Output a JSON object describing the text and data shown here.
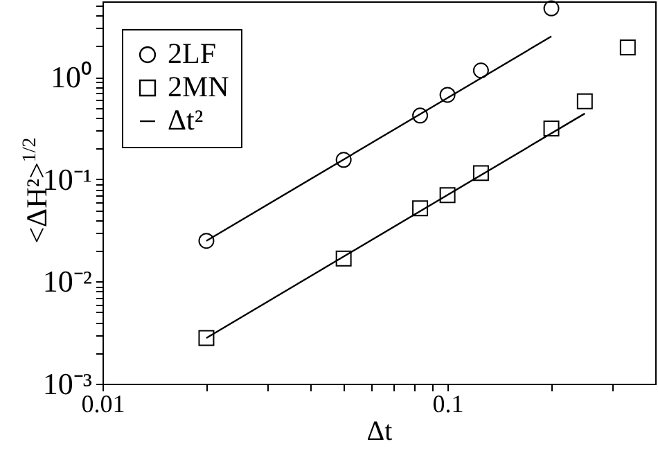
{
  "chart_data": {
    "type": "scatter",
    "xlabel": "Δt",
    "ylabel": "<ΔH²>$^{1/2}$",
    "log": "xy",
    "legend": "top left",
    "grid": false,
    "xlim": [
      0.01,
      0.4
    ],
    "ylim": [
      0.001,
      5.5
    ],
    "xticks": [
      0.01,
      {
        "value": 0.02,
        "label": null
      },
      {
        "value": 0.03,
        "label": null
      },
      {
        "value": 0.04,
        "label": null
      },
      {
        "value": 0.05,
        "label": null
      },
      {
        "value": 0.06,
        "label": null
      },
      {
        "value": 0.07,
        "label": null
      },
      {
        "value": 0.08,
        "label": null
      },
      {
        "value": 0.09,
        "label": null
      },
      0.1,
      {
        "value": 0.2,
        "label": null
      },
      {
        "value": 0.3,
        "label": null
      }
    ],
    "yticks": [
      {
        "value": 0.001,
        "label": "10⁻³"
      },
      {
        "value": 0.002,
        "label": null
      },
      {
        "value": 0.003,
        "label": null
      },
      {
        "value": 0.004,
        "label": null
      },
      {
        "value": 0.005,
        "label": null
      },
      {
        "value": 0.006,
        "label": null
      },
      {
        "value": 0.007,
        "label": null
      },
      {
        "value": 0.008,
        "label": null
      },
      {
        "value": 0.009,
        "label": null
      },
      {
        "value": 0.01,
        "label": "10⁻²"
      },
      {
        "value": 0.02,
        "label": null
      },
      {
        "value": 0.03,
        "label": null
      },
      {
        "value": 0.04,
        "label": null
      },
      {
        "value": 0.05,
        "label": null
      },
      {
        "value": 0.06,
        "label": null
      },
      {
        "value": 0.07,
        "label": null
      },
      {
        "value": 0.08,
        "label": null
      },
      {
        "value": 0.09,
        "label": null
      },
      {
        "value": 0.1,
        "label": "10⁻¹"
      },
      {
        "value": 0.2,
        "label": null
      },
      {
        "value": 0.3,
        "label": null
      },
      {
        "value": 0.4,
        "label": null
      },
      {
        "value": 0.5,
        "label": null
      },
      {
        "value": 0.6,
        "label": null
      },
      {
        "value": 0.7,
        "label": null
      },
      {
        "value": 0.8,
        "label": null
      },
      {
        "value": 0.9,
        "label": null
      },
      {
        "value": 1,
        "label": "10⁰"
      },
      {
        "value": 2,
        "label": null
      },
      {
        "value": 3,
        "label": null
      },
      {
        "value": 4,
        "label": null
      },
      {
        "value": 5,
        "label": null
      }
    ],
    "series": [
      {
        "name": "2LF",
        "marker": "circle",
        "color": "#000000",
        "x": [
          0.02,
          0.05,
          0.0833,
          0.1,
          0.125,
          0.2
        ],
        "values": [
          0.025,
          0.155,
          0.42,
          0.67,
          1.16,
          4.7
        ]
      },
      {
        "name": "2MN",
        "marker": "square",
        "color": "#000000",
        "x": [
          0.02,
          0.05,
          0.0833,
          0.1,
          0.125,
          0.2,
          0.25,
          0.333
        ],
        "values": [
          0.0028,
          0.0168,
          0.052,
          0.07,
          0.115,
          0.314,
          0.58,
          1.95
        ]
      },
      {
        "name": "Δt²",
        "type": "line",
        "color": "#000000",
        "x": [
          0.02,
          0.2
        ],
        "values": [
          0.025,
          2.5
        ]
      },
      {
        "type": "line",
        "color": "#000000",
        "x": [
          0.02,
          0.25
        ],
        "values": [
          0.0028,
          0.44
        ]
      }
    ]
  }
}
